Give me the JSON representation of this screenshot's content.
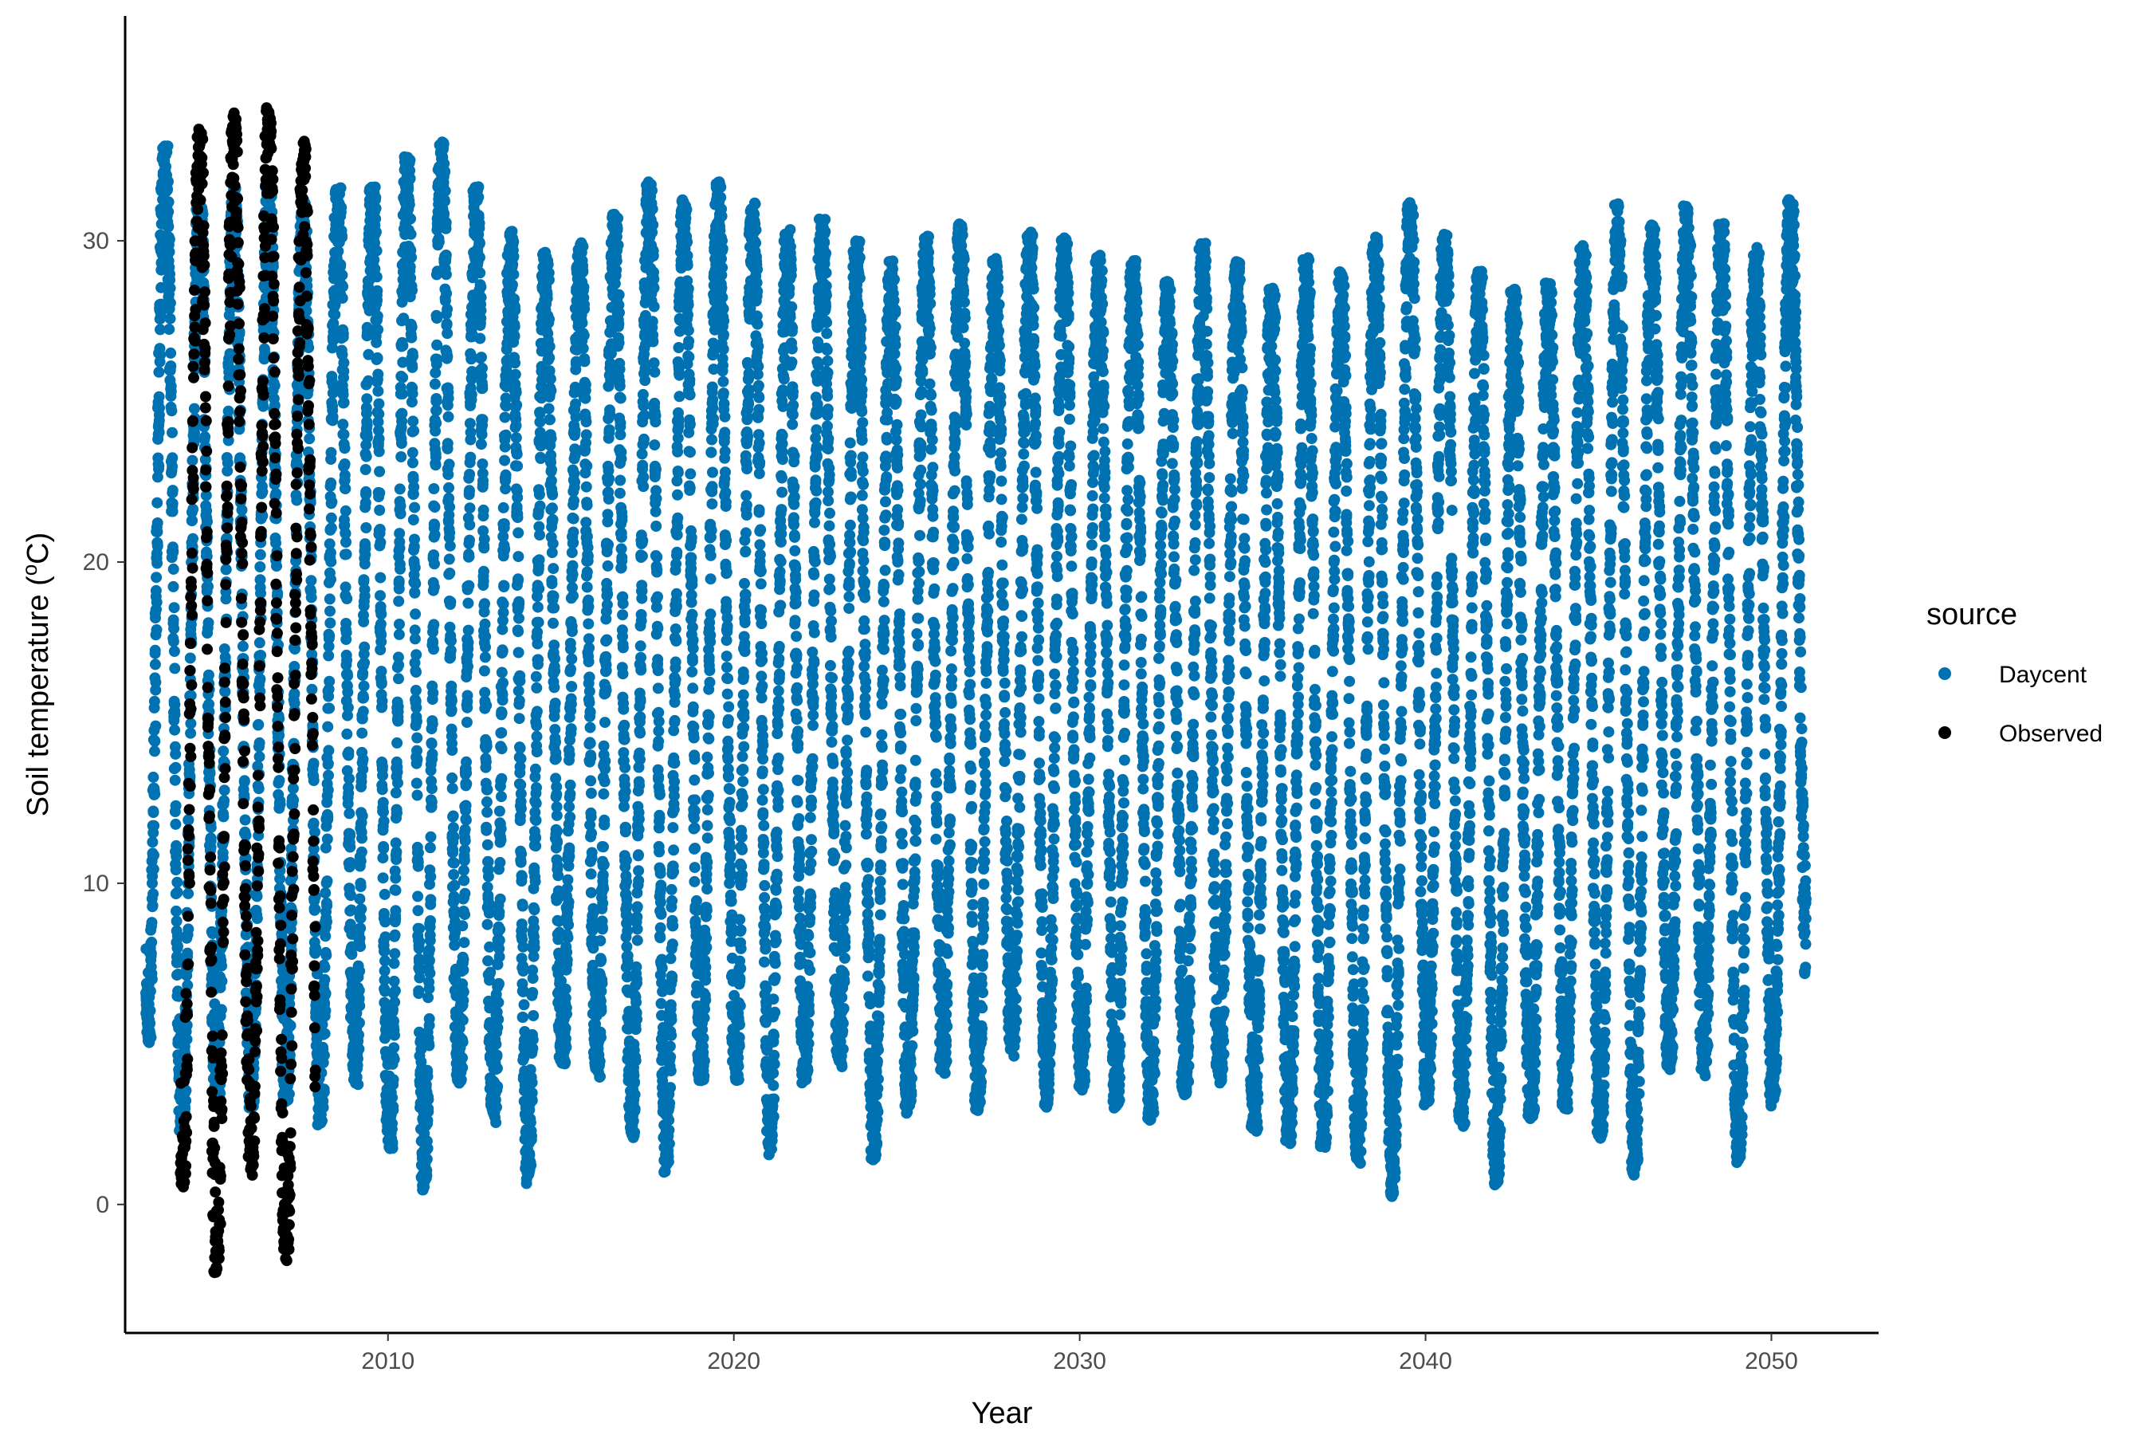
{
  "chart_data": {
    "type": "scatter",
    "title": "",
    "xlabel": "Year",
    "ylabel_prefix": "Soil temperature (",
    "ylabel_sup": "o",
    "ylabel_suffix": "C)",
    "xlim": [
      2002.4,
      2053.1
    ],
    "ylim": [
      -4,
      37
    ],
    "x_ticks": [
      2010,
      2020,
      2030,
      2040,
      2050
    ],
    "y_ticks": [
      0,
      10,
      20,
      30
    ],
    "grid": false,
    "legend": {
      "title": "source",
      "position": "right",
      "entries": [
        {
          "label": "Daycent",
          "color": "#0072B2"
        },
        {
          "label": "Observed",
          "color": "#000000"
        }
      ]
    },
    "series": [
      {
        "name": "Daycent",
        "color": "#0072B2",
        "x_start": 2003.0,
        "x_end": 2051.0,
        "summer_peaks": [
          [
            2003,
            34.6
          ],
          [
            2004,
            31.6
          ],
          [
            2005,
            30.9
          ],
          [
            2006,
            32.4
          ],
          [
            2007,
            31.4
          ],
          [
            2008,
            31.2
          ],
          [
            2009,
            32.1
          ],
          [
            2010,
            31.3
          ],
          [
            2011,
            34.1
          ],
          [
            2012,
            32.1
          ],
          [
            2013,
            31.3
          ],
          [
            2014,
            29.4
          ],
          [
            2015,
            29.9
          ],
          [
            2016,
            30.0
          ],
          [
            2017,
            31.7
          ],
          [
            2018,
            32.1
          ],
          [
            2019,
            30.5
          ],
          [
            2020,
            33.3
          ],
          [
            2021,
            29.1
          ],
          [
            2022,
            31.6
          ],
          [
            2023,
            29.8
          ],
          [
            2024,
            30.2
          ],
          [
            2025,
            28.6
          ],
          [
            2026,
            31.7
          ],
          [
            2027,
            29.4
          ],
          [
            2028,
            29.5
          ],
          [
            2029,
            31.1
          ],
          [
            2030,
            29.1
          ],
          [
            2031,
            30.0
          ],
          [
            2032,
            28.8
          ],
          [
            2033,
            28.7
          ],
          [
            2034,
            31.2
          ],
          [
            2035,
            27.5
          ],
          [
            2036,
            29.6
          ],
          [
            2037,
            29.4
          ],
          [
            2038,
            28.7
          ],
          [
            2039,
            31.6
          ],
          [
            2040,
            30.8
          ],
          [
            2041,
            29.8
          ],
          [
            2042,
            28.4
          ],
          [
            2043,
            28.7
          ],
          [
            2044,
            28.7
          ],
          [
            2045,
            31.0
          ],
          [
            2046,
            31.4
          ],
          [
            2047,
            29.6
          ],
          [
            2048,
            32.7
          ],
          [
            2049,
            28.4
          ],
          [
            2050,
            31.3
          ]
        ],
        "winter_troughs": [
          [
            2003,
            5.2
          ],
          [
            2004,
            2.2
          ],
          [
            2005,
            3.2
          ],
          [
            2006,
            3.0
          ],
          [
            2007,
            3.2
          ],
          [
            2008,
            2.4
          ],
          [
            2009,
            3.8
          ],
          [
            2010,
            1.8
          ],
          [
            2011,
            0.4
          ],
          [
            2012,
            3.8
          ],
          [
            2013,
            2.8
          ],
          [
            2014,
            0.6
          ],
          [
            2015,
            4.4
          ],
          [
            2016,
            4.2
          ],
          [
            2017,
            2.2
          ],
          [
            2018,
            0.9
          ],
          [
            2019,
            3.8
          ],
          [
            2020,
            4.0
          ],
          [
            2021,
            1.5
          ],
          [
            2022,
            3.8
          ],
          [
            2023,
            4.6
          ],
          [
            2024,
            1.2
          ],
          [
            2025,
            2.8
          ],
          [
            2026,
            4.2
          ],
          [
            2027,
            2.8
          ],
          [
            2028,
            4.8
          ],
          [
            2029,
            3.0
          ],
          [
            2030,
            3.6
          ],
          [
            2031,
            3.0
          ],
          [
            2032,
            2.6
          ],
          [
            2033,
            3.4
          ],
          [
            2034,
            3.8
          ],
          [
            2035,
            2.3
          ],
          [
            2036,
            1.9
          ],
          [
            2037,
            1.8
          ],
          [
            2038,
            1.4
          ],
          [
            2039,
            0.1
          ],
          [
            2040,
            3.2
          ],
          [
            2041,
            2.6
          ],
          [
            2042,
            0.5
          ],
          [
            2043,
            2.6
          ],
          [
            2044,
            3.0
          ],
          [
            2045,
            2.1
          ],
          [
            2046,
            0.8
          ],
          [
            2047,
            4.2
          ],
          [
            2048,
            4.2
          ],
          [
            2049,
            1.3
          ],
          [
            2050,
            3.0
          ],
          [
            2051,
            7.2
          ]
        ]
      },
      {
        "name": "Observed",
        "color": "#000000",
        "x_start": 2004.0,
        "x_end": 2007.9,
        "summer_peaks": [
          [
            2004,
            34.2
          ],
          [
            2005,
            32.8
          ],
          [
            2006,
            35.2
          ],
          [
            2007,
            33.1
          ]
        ],
        "winter_troughs": [
          [
            2004,
            0.7
          ],
          [
            2005,
            -2.2
          ],
          [
            2006,
            0.9
          ],
          [
            2007,
            -1.8
          ]
        ]
      }
    ]
  }
}
